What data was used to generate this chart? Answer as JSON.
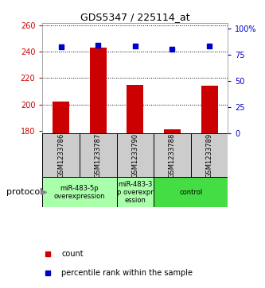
{
  "title": "GDS5347 / 225114_at",
  "samples": [
    "GSM1233786",
    "GSM1233787",
    "GSM1233790",
    "GSM1233788",
    "GSM1233789"
  ],
  "bar_values": [
    202,
    243,
    215,
    181,
    214
  ],
  "percentile_values": [
    82,
    84,
    83,
    80,
    83
  ],
  "ylim_left": [
    178,
    262
  ],
  "ylim_right": [
    0,
    105
  ],
  "yticks_left": [
    180,
    200,
    220,
    240,
    260
  ],
  "yticks_right": [
    0,
    25,
    50,
    75,
    100
  ],
  "ytick_labels_right": [
    "0",
    "25",
    "50",
    "75",
    "100%"
  ],
  "bar_color": "#cc0000",
  "marker_color": "#0000cc",
  "protocol_label": "protocol",
  "legend_count_label": "count",
  "legend_percentile_label": "percentile rank within the sample",
  "axis_left_color": "#cc0000",
  "axis_right_color": "#0000cc",
  "sample_box_color": "#cccccc",
  "base_value": 178,
  "group_defs": [
    {
      "start": 0,
      "end": 1,
      "label": "miR-483-5p\noverexpression",
      "color": "#aaffaa"
    },
    {
      "start": 2,
      "end": 2,
      "label": "miR-483-3\np overexpr\nession",
      "color": "#aaffaa"
    },
    {
      "start": 3,
      "end": 4,
      "label": "control",
      "color": "#44dd44"
    }
  ]
}
